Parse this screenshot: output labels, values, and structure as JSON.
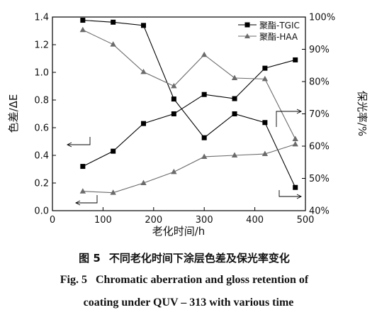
{
  "chart_data": {
    "type": "line",
    "x": [
      60,
      120,
      180,
      240,
      300,
      360,
      420,
      480
    ],
    "xlabel": "老化时间/h",
    "xlim": [
      0,
      500
    ],
    "xticks": [
      "0",
      "100",
      "200",
      "300",
      "400",
      "500"
    ],
    "ylabel_left": "色差/ΔE",
    "ylim_left": [
      0,
      1.4
    ],
    "yticks_left": [
      "0.0",
      "0.2",
      "0.4",
      "0.6",
      "0.8",
      "1.0",
      "1.2",
      "1.4"
    ],
    "ylabel_right": "保光率/%",
    "ylim_right": [
      40,
      100
    ],
    "yticks_right": [
      "40%",
      "50%",
      "60%",
      "70%",
      "80%",
      "90%",
      "100%"
    ],
    "legend_position": "top-right",
    "grid": false,
    "series": [
      {
        "name": "聚酯-TGIC",
        "marker": "square",
        "color": "#000000",
        "delta_e": [
          0.32,
          0.43,
          0.63,
          0.7,
          0.84,
          0.81,
          1.03,
          1.09
        ],
        "gloss_retention": [
          99,
          98.4,
          97.4,
          74.6,
          62.6,
          70,
          67.3,
          47.2
        ]
      },
      {
        "name": "聚酯-HAA",
        "marker": "triangle",
        "color": "#6b6b6b",
        "delta_e": [
          0.14,
          0.13,
          0.2,
          0.28,
          0.39,
          0.4,
          0.41,
          0.48
        ],
        "gloss_retention": [
          96,
          91.5,
          83,
          78.6,
          88.3,
          81.1,
          80.8,
          62.2
        ]
      }
    ]
  },
  "caption": {
    "cn_fig": "图 5",
    "cn_text": "不同老化时间下涂层色差及保光率变化",
    "en_fig": "Fig. 5",
    "en_line1": "Chromatic aberration and gloss retention of",
    "en_line2": "coating under QUV – 313 with various time"
  }
}
